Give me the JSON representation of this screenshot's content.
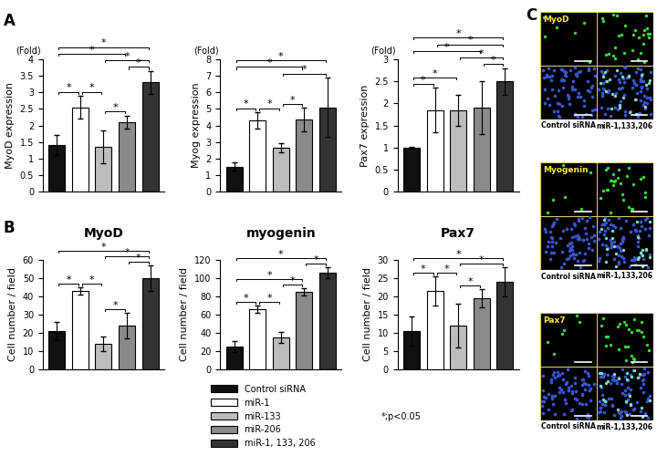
{
  "panels": [
    "A",
    "B",
    "C"
  ],
  "chart_data": [
    {
      "type": "bar",
      "annotation": "(Fold)",
      "y_label": "MyoD expression",
      "categories": [
        "Control siRNA",
        "miR-1",
        "miR-133",
        "miR-206",
        "miR-1, 133, 206"
      ],
      "colors": [
        "#111111",
        "#ffffff",
        "#bdbdbd",
        "#8a8a8a",
        "#333333"
      ],
      "values": [
        1.4,
        2.55,
        1.35,
        2.1,
        3.3
      ],
      "errors": [
        0.3,
        0.35,
        0.5,
        0.2,
        0.35
      ],
      "ylim": [
        0,
        4
      ],
      "yticks": [
        0,
        0.5,
        1,
        1.5,
        2,
        2.5,
        3,
        3.5,
        4
      ],
      "tick_labels": "y",
      "significance": [
        [
          0,
          4
        ],
        [
          0,
          1
        ],
        [
          0,
          3
        ],
        [
          1,
          2
        ],
        [
          2,
          4
        ],
        [
          3,
          4
        ],
        [
          2,
          3
        ]
      ],
      "significance_label": "*"
    },
    {
      "type": "bar",
      "annotation": "(Fold)",
      "y_label": "Myog expression",
      "categories": [
        "Control siRNA",
        "miR-1",
        "miR-133",
        "miR-206",
        "miR-1, 133, 206"
      ],
      "colors": [
        "#111111",
        "#ffffff",
        "#bdbdbd",
        "#8a8a8a",
        "#333333"
      ],
      "values": [
        1.5,
        4.3,
        2.65,
        4.35,
        5.1
      ],
      "errors": [
        0.25,
        0.5,
        0.25,
        0.7,
        1.8
      ],
      "ylim": [
        0,
        8
      ],
      "yticks": [
        0,
        1,
        2,
        3,
        4,
        5,
        6,
        7,
        8
      ],
      "tick_labels": "y",
      "significance": [
        [
          0,
          4
        ],
        [
          0,
          3
        ],
        [
          0,
          1
        ],
        [
          1,
          2
        ],
        [
          2,
          3
        ],
        [
          2,
          4
        ]
      ],
      "significance_label": "*"
    },
    {
      "type": "bar",
      "annotation": "(Fold)",
      "y_label": "Pax7 expression",
      "categories": [
        "Control siRNA",
        "miR-1",
        "miR-133",
        "miR-206",
        "miR-1, 133, 206"
      ],
      "colors": [
        "#111111",
        "#ffffff",
        "#bdbdbd",
        "#8a8a8a",
        "#333333"
      ],
      "values": [
        1.0,
        1.85,
        1.85,
        1.9,
        2.5
      ],
      "errors": [
        0.02,
        0.5,
        0.35,
        0.6,
        0.3
      ],
      "ylim": [
        0,
        3
      ],
      "yticks": [
        0,
        0.5,
        1,
        1.5,
        2,
        2.5,
        3
      ],
      "tick_labels": "y",
      "significance": [
        [
          0,
          4
        ],
        [
          0,
          3
        ],
        [
          0,
          2
        ],
        [
          0,
          1
        ],
        [
          1,
          4
        ],
        [
          2,
          4
        ],
        [
          3,
          4
        ]
      ],
      "significance_label": "*"
    },
    {
      "type": "bar",
      "title": "MyoD",
      "y_label": "Cell number / field",
      "categories": [
        "Control siRNA",
        "miR-1",
        "miR-133",
        "miR-206",
        "miR-1, 133, 206"
      ],
      "colors": [
        "#111111",
        "#ffffff",
        "#bdbdbd",
        "#8a8a8a",
        "#333333"
      ],
      "values": [
        21,
        43,
        14,
        24,
        50
      ],
      "errors": [
        5,
        2,
        4,
        7,
        7
      ],
      "ylim": [
        0,
        60
      ],
      "yticks": [
        0,
        10,
        20,
        30,
        40,
        50,
        60
      ],
      "tick_labels": "y",
      "significance": [
        [
          0,
          4
        ],
        [
          0,
          1
        ],
        [
          1,
          2
        ],
        [
          2,
          3
        ],
        [
          2,
          4
        ],
        [
          3,
          4
        ]
      ],
      "significance_label": "*"
    },
    {
      "type": "bar",
      "title": "myogenin",
      "y_label": "Cell number / field",
      "categories": [
        "Control siRNA",
        "miR-1",
        "miR-133",
        "miR-206",
        "miR-1, 133, 206"
      ],
      "colors": [
        "#111111",
        "#ffffff",
        "#bdbdbd",
        "#8a8a8a",
        "#333333"
      ],
      "values": [
        25,
        66,
        35,
        85,
        106
      ],
      "errors": [
        6,
        4,
        6,
        4,
        6
      ],
      "ylim": [
        0,
        120
      ],
      "yticks": [
        0,
        20,
        40,
        60,
        80,
        100,
        120
      ],
      "tick_labels": "y",
      "significance": [
        [
          0,
          4
        ],
        [
          0,
          3
        ],
        [
          0,
          1
        ],
        [
          1,
          2
        ],
        [
          2,
          3
        ],
        [
          3,
          4
        ]
      ],
      "significance_label": "*"
    },
    {
      "type": "bar",
      "title": "Pax7",
      "y_label": "Cell number / field",
      "categories": [
        "Control siRNA",
        "miR-1",
        "miR-133",
        "miR-206",
        "miR-1, 133, 206"
      ],
      "colors": [
        "#111111",
        "#ffffff",
        "#bdbdbd",
        "#8a8a8a",
        "#333333"
      ],
      "values": [
        10.5,
        21.5,
        12,
        19.5,
        24
      ],
      "errors": [
        4,
        4,
        6,
        2.5,
        4
      ],
      "ylim": [
        0,
        30
      ],
      "yticks": [
        0,
        5,
        10,
        15,
        20,
        25,
        30
      ],
      "tick_labels": "y",
      "significance": [
        [
          0,
          4
        ],
        [
          0,
          1
        ],
        [
          1,
          2
        ],
        [
          2,
          3
        ],
        [
          2,
          4
        ]
      ],
      "significance_label": "*"
    }
  ],
  "figure_legend": {
    "legend": "lower center",
    "note": "*;p<0.05"
  },
  "images": {
    "markers": [
      "MyoD",
      "Myogenin",
      "Pax7"
    ],
    "conditions": [
      "Control siRNA",
      "miR-1,133,206"
    ]
  }
}
